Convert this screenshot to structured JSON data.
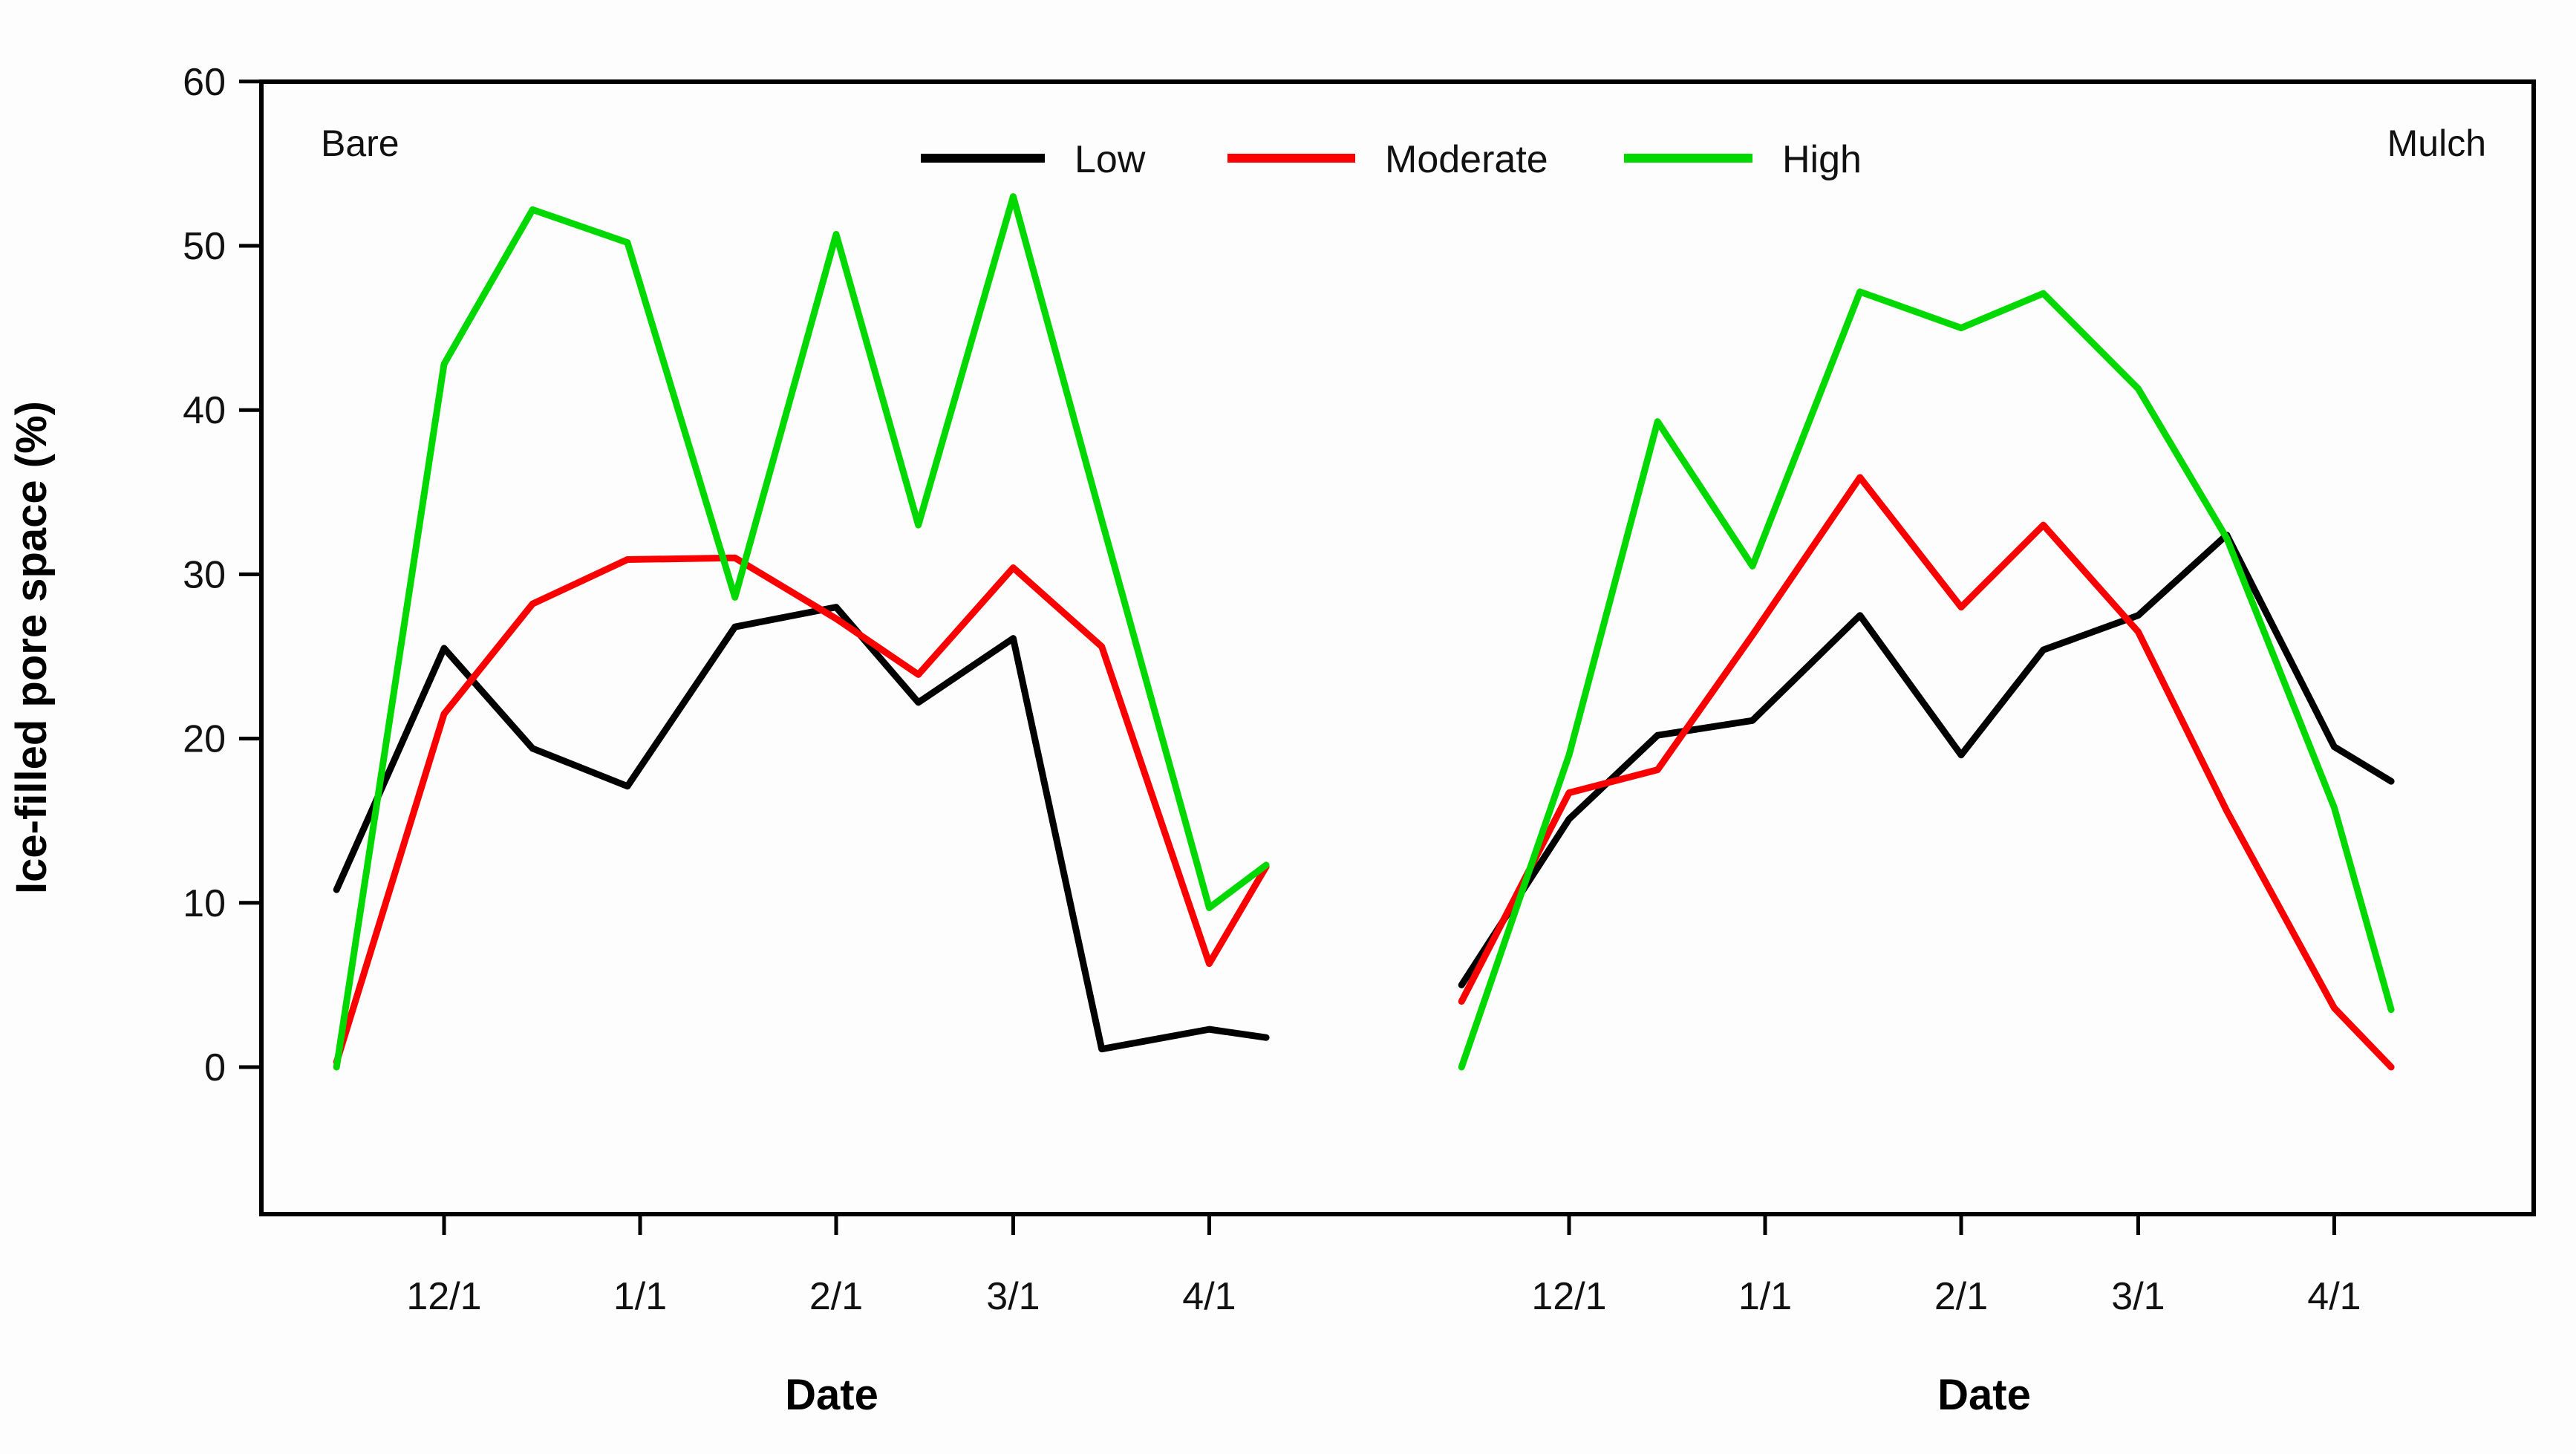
{
  "chart": {
    "ylabel": "Ice-filled pore space (%)",
    "xlabel": "Date",
    "legend": [
      {
        "label": "Low",
        "color": "#000000"
      },
      {
        "label": "Moderate",
        "color": "#fa0000"
      },
      {
        "label": "High",
        "color": "#00d800"
      }
    ],
    "colors": {
      "low": "#000000",
      "moderate": "#fa0000",
      "high": "#00d800"
    },
    "y_axis": {
      "min": 0,
      "max": 60,
      "ticks": [
        0,
        10,
        20,
        30,
        40,
        50,
        60
      ]
    },
    "x_axis": {
      "tick_labels": [
        "12/1",
        "1/1",
        "2/1",
        "3/1",
        "4/1"
      ],
      "tick_days": [
        30,
        61,
        92,
        120,
        151
      ]
    }
  },
  "chart_data": [
    {
      "panel": "Bare",
      "type": "line",
      "x_dates": [
        "11/14",
        "12/1",
        "12/15",
        "12/30",
        "1/16",
        "2/1",
        "2/14",
        "3/1",
        "3/15",
        "4/1",
        "4/10"
      ],
      "x_days": [
        13,
        30,
        44,
        59,
        76,
        92,
        105,
        120,
        134,
        151,
        160
      ],
      "ylim": [
        0,
        60
      ],
      "grid": false,
      "series": [
        {
          "name": "Low",
          "color": "#000000",
          "values": [
            10.8,
            25.5,
            19.4,
            17.1,
            26.8,
            28.0,
            22.2,
            26.1,
            1.1,
            2.3,
            1.8
          ]
        },
        {
          "name": "Moderate",
          "color": "#fa0000",
          "values": [
            0.3,
            21.5,
            28.2,
            30.9,
            31.0,
            27.3,
            23.9,
            30.4,
            25.6,
            6.3,
            12.2
          ]
        },
        {
          "name": "High",
          "color": "#00d800",
          "values": [
            0.0,
            42.8,
            52.2,
            50.2,
            28.6,
            50.7,
            33.0,
            53.0,
            33.3,
            9.7,
            12.3
          ]
        }
      ]
    },
    {
      "panel": "Mulch",
      "type": "line",
      "x_dates": [
        "11/14",
        "12/1",
        "12/15",
        "12/30",
        "1/16",
        "2/1",
        "2/14",
        "3/1",
        "3/15",
        "4/1",
        "4/10"
      ],
      "x_days": [
        13,
        30,
        44,
        59,
        76,
        92,
        105,
        120,
        134,
        151,
        160
      ],
      "ylim": [
        0,
        60
      ],
      "grid": false,
      "series": [
        {
          "name": "Low",
          "color": "#000000",
          "values": [
            5.0,
            15.1,
            20.2,
            21.1,
            27.5,
            19.0,
            25.4,
            27.5,
            32.4,
            19.5,
            17.4
          ]
        },
        {
          "name": "Moderate",
          "color": "#fa0000",
          "values": [
            4.0,
            16.7,
            18.1,
            26.3,
            35.9,
            28.0,
            33.0,
            26.5,
            15.6,
            3.6,
            0.0
          ]
        },
        {
          "name": "High",
          "color": "#00d800",
          "values": [
            0.0,
            19.0,
            39.3,
            30.5,
            47.2,
            45.0,
            47.1,
            41.3,
            32.2,
            15.8,
            3.5
          ]
        }
      ]
    }
  ]
}
